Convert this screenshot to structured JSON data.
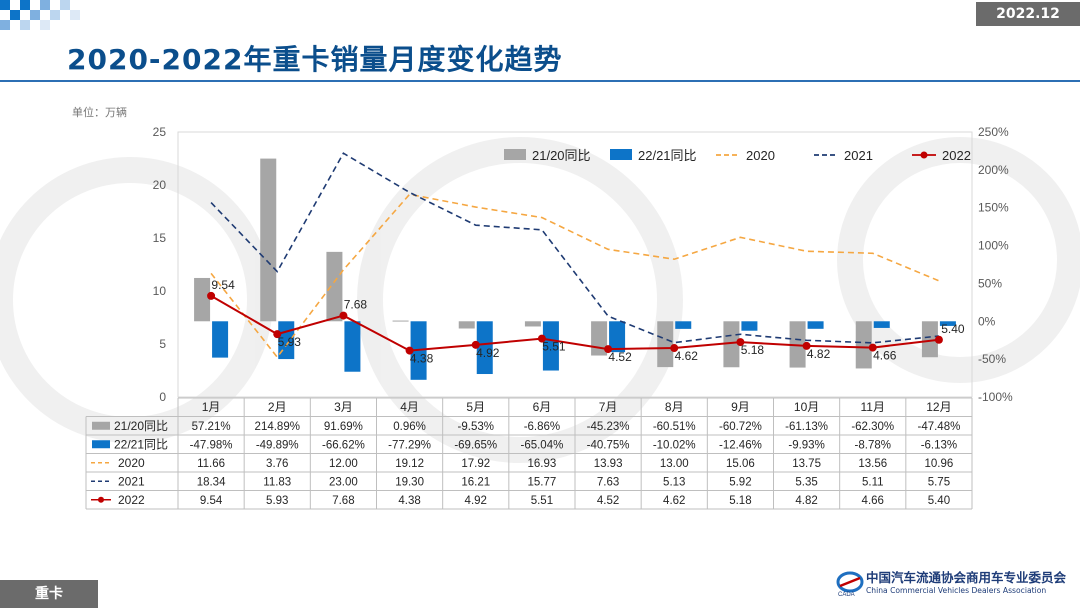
{
  "header": {
    "date_badge": "2022.12",
    "title": "2020-2022年重卡销量月度变化趋势",
    "unit_label": "单位：万辆"
  },
  "footer": {
    "section_tag": "重卡",
    "org_name_cn": "中国汽车流通协会商用车专业委员会",
    "org_name_en": "China Commercial Vehicles Dealers Association"
  },
  "colors": {
    "accent": "#0b4e8c",
    "yoy_2120": "#a6a6a6",
    "yoy_2221": "#0d74c8",
    "line_2020": "#f5a742",
    "line_2021": "#1f3b73",
    "line_2022": "#c00000"
  },
  "chart_data": {
    "type": "bar",
    "categories": [
      "1月",
      "2月",
      "3月",
      "4月",
      "5月",
      "6月",
      "7月",
      "8月",
      "9月",
      "10月",
      "11月",
      "12月"
    ],
    "y_left": {
      "range": [
        0,
        25
      ],
      "ticks": [
        "0",
        "5",
        "10",
        "15",
        "20",
        "25"
      ]
    },
    "y_right": {
      "range": [
        -100,
        250
      ],
      "ticks": [
        "-100%",
        "-50%",
        "0%",
        "50%",
        "100%",
        "150%",
        "200%",
        "250%"
      ]
    },
    "grid": false,
    "legend_position": "top-right",
    "series": [
      {
        "name": "21/20同比",
        "kind": "bar",
        "axis": "right",
        "values": [
          57.21,
          214.89,
          91.69,
          0.96,
          -9.53,
          -6.86,
          -45.23,
          -60.51,
          -60.72,
          -61.13,
          -62.3,
          -47.48
        ],
        "labels": [
          "57.21%",
          "214.89%",
          "91.69%",
          "0.96%",
          "-9.53%",
          "-6.86%",
          "-45.23%",
          "-60.51%",
          "-60.72%",
          "-61.13%",
          "-62.30%",
          "-47.48%"
        ]
      },
      {
        "name": "22/21同比",
        "kind": "bar",
        "axis": "right",
        "values": [
          -47.98,
          -49.89,
          -66.62,
          -77.29,
          -69.65,
          -65.04,
          -40.75,
          -10.02,
          -12.46,
          -9.93,
          -8.78,
          -6.13
        ],
        "labels": [
          "-47.98%",
          "-49.89%",
          "-66.62%",
          "-77.29%",
          "-69.65%",
          "-65.04%",
          "-40.75%",
          "-10.02%",
          "-12.46%",
          "-9.93%",
          "-8.78%",
          "-6.13%"
        ]
      },
      {
        "name": "2020",
        "kind": "line",
        "style": "dashed",
        "axis": "left",
        "values": [
          11.66,
          3.76,
          12.0,
          19.12,
          17.92,
          16.93,
          13.93,
          13.0,
          15.06,
          13.75,
          13.56,
          10.96
        ],
        "labels": [
          "11.66",
          "3.76",
          "12.00",
          "19.12",
          "17.92",
          "16.93",
          "13.93",
          "13.00",
          "15.06",
          "13.75",
          "13.56",
          "10.96"
        ]
      },
      {
        "name": "2021",
        "kind": "line",
        "style": "dashed",
        "axis": "left",
        "values": [
          18.34,
          11.83,
          23.0,
          19.3,
          16.21,
          15.77,
          7.63,
          5.13,
          5.92,
          5.35,
          5.11,
          5.75
        ],
        "labels": [
          "18.34",
          "11.83",
          "23.00",
          "19.30",
          "16.21",
          "15.77",
          "7.63",
          "5.13",
          "5.92",
          "5.35",
          "5.11",
          "5.75"
        ]
      },
      {
        "name": "2022",
        "kind": "line",
        "style": "solid-marker",
        "axis": "left",
        "values": [
          9.54,
          5.93,
          7.68,
          4.38,
          4.92,
          5.51,
          4.52,
          4.62,
          5.18,
          4.82,
          4.66,
          5.4
        ],
        "labels": [
          "9.54",
          "5.93",
          "7.68",
          "4.38",
          "4.92",
          "5.51",
          "4.52",
          "4.62",
          "5.18",
          "4.82",
          "4.66",
          "5.40"
        ]
      }
    ]
  }
}
